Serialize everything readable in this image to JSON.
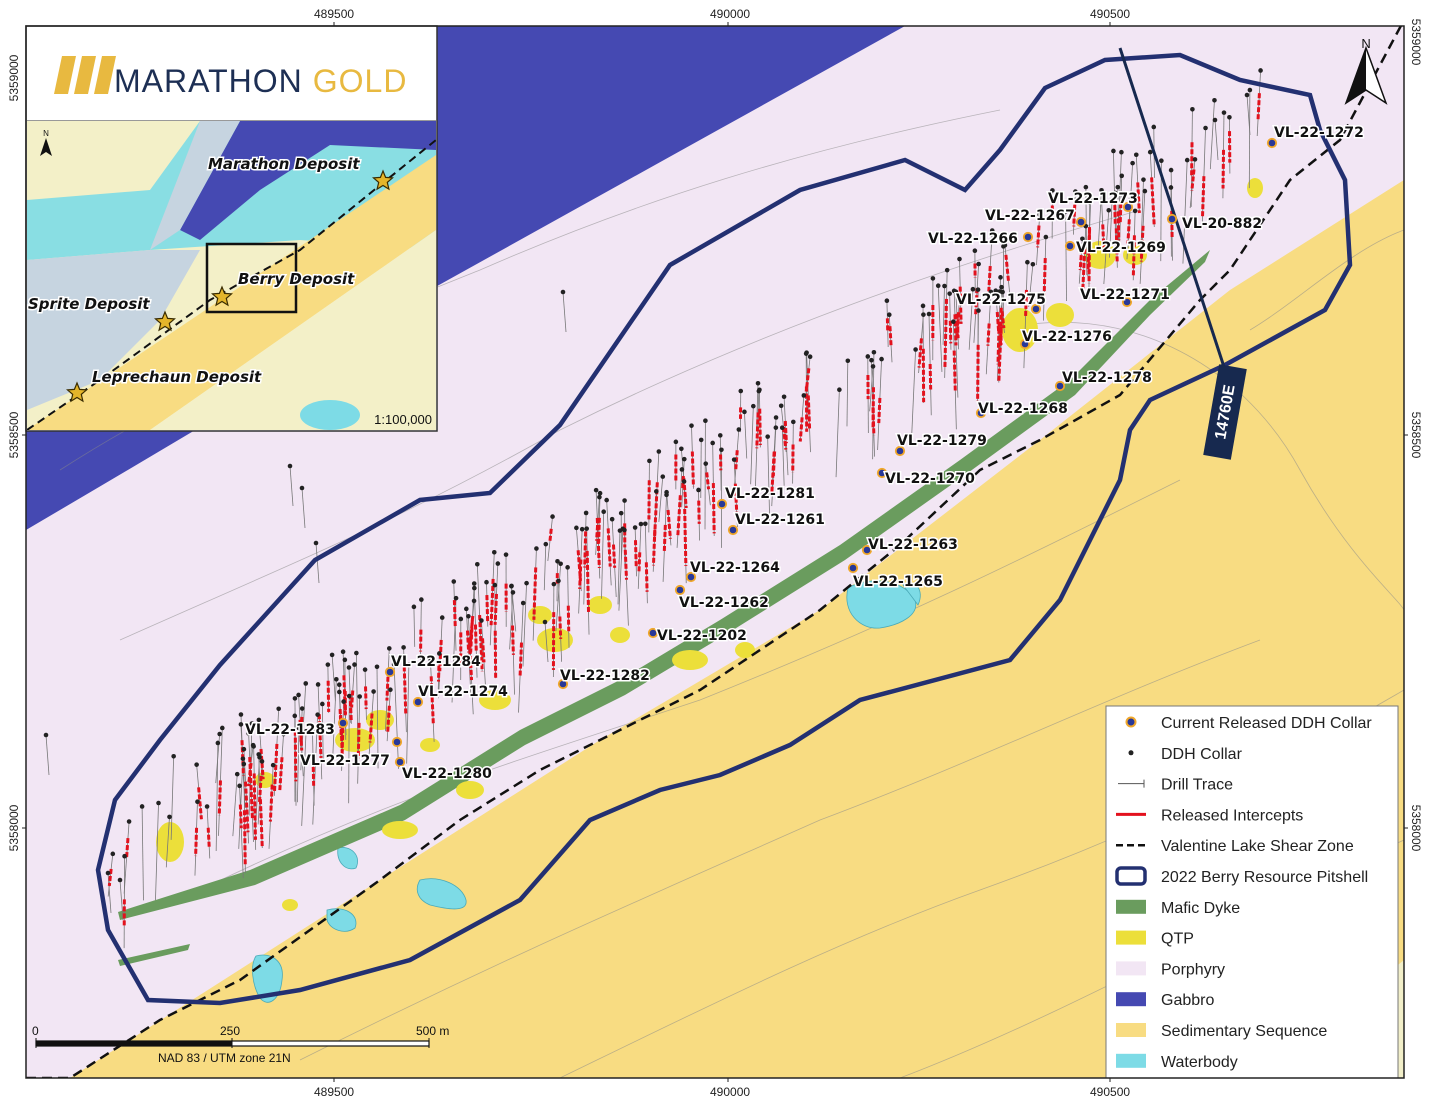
{
  "logo": {
    "brand": "MARATHON",
    "brand_accent": "GOLD",
    "color_dark": "#1d2f54",
    "color_gold": "#e8b940"
  },
  "colors": {
    "porphyry": "#f2e6f4",
    "gabbro": "#4549b2",
    "sedimentary": "#f8dc82",
    "waterbody": "#7ddbe6",
    "mafic_dyke": "#6a9c5e",
    "qtp": "#ecdf3a",
    "intercept": "#e3111d",
    "pitshell": "#233071",
    "collar_fill": "#283898",
    "collar_ring": "#f0a72a",
    "section_line": "#17294f"
  },
  "grid": {
    "top_eastings": [
      "489500",
      "490000",
      "490500"
    ],
    "bottom_eastings": [
      "489500",
      "490000",
      "490500"
    ],
    "left_northings": [
      "5359000",
      "5358500",
      "5358000"
    ],
    "right_northings": [
      "5359000",
      "5358500",
      "5358000"
    ]
  },
  "inset": {
    "scale": "1:100,000",
    "north_label": "N",
    "deposits": [
      {
        "name": "Marathon Deposit"
      },
      {
        "name": "Berry Deposit"
      },
      {
        "name": "Sprite Deposit"
      },
      {
        "name": "Leprechaun Deposit"
      }
    ]
  },
  "north_arrow": {
    "label": "N"
  },
  "section_line": {
    "label": "14760E"
  },
  "collars": [
    {
      "id": "VL-22-1272"
    },
    {
      "id": "VL-22-1273"
    },
    {
      "id": "VL-22-1267"
    },
    {
      "id": "VL-20-882"
    },
    {
      "id": "VL-22-1266"
    },
    {
      "id": "VL-22-1269"
    },
    {
      "id": "VL-22-1275"
    },
    {
      "id": "VL-22-1271"
    },
    {
      "id": "VL-22-1276"
    },
    {
      "id": "VL-22-1278"
    },
    {
      "id": "VL-22-1268"
    },
    {
      "id": "VL-22-1279"
    },
    {
      "id": "VL-22-1270"
    },
    {
      "id": "VL-22-1281"
    },
    {
      "id": "VL-22-1261"
    },
    {
      "id": "VL-22-1263"
    },
    {
      "id": "VL-22-1264"
    },
    {
      "id": "VL-22-1265"
    },
    {
      "id": "VL-22-1262"
    },
    {
      "id": "VL-22-1202"
    },
    {
      "id": "VL-22-1284"
    },
    {
      "id": "VL-22-1282"
    },
    {
      "id": "VL-22-1274"
    },
    {
      "id": "VL-22-1283"
    },
    {
      "id": "VL-22-1277"
    },
    {
      "id": "VL-22-1280"
    }
  ],
  "scale_bar": {
    "tick_0": "0",
    "tick_250": "250",
    "tick_500": "500 m",
    "projection": "NAD 83 / UTM zone 21N"
  },
  "legend": {
    "items": [
      {
        "key": "collar_current",
        "label": "Current Released DDH Collar"
      },
      {
        "key": "collar",
        "label": "DDH Collar"
      },
      {
        "key": "trace",
        "label": "Drill Trace"
      },
      {
        "key": "intercepts",
        "label": "Released Intercepts"
      },
      {
        "key": "shear",
        "label": "Valentine Lake Shear Zone"
      },
      {
        "key": "pitshell",
        "label": "2022 Berry Resource Pitshell"
      },
      {
        "key": "mafic",
        "label": "Mafic Dyke"
      },
      {
        "key": "qtp",
        "label": "QTP"
      },
      {
        "key": "porphyry",
        "label": "Porphyry"
      },
      {
        "key": "gabbro",
        "label": "Gabbro"
      },
      {
        "key": "sedimentary",
        "label": "Sedimentary Sequence"
      },
      {
        "key": "waterbody",
        "label": "Waterbody"
      }
    ]
  }
}
